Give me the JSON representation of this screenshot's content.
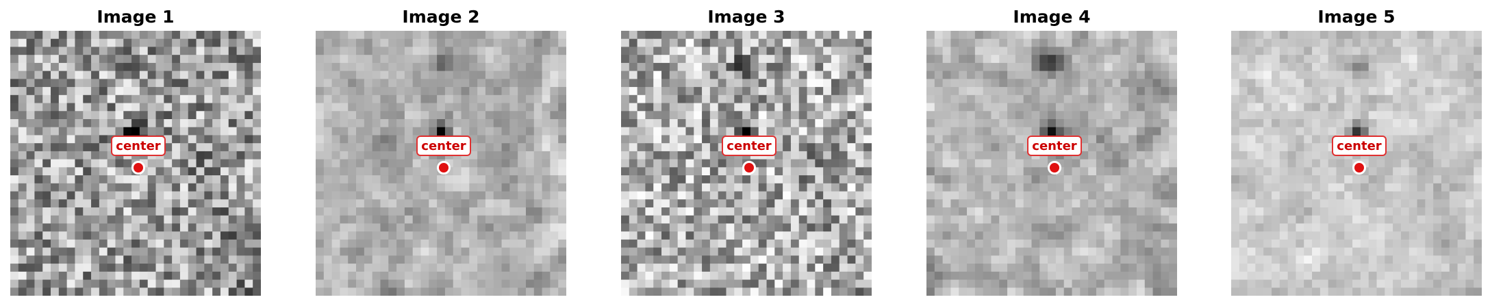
{
  "panels": [
    {
      "title": "Image 1",
      "marker_label": "center",
      "noise_seed": 11,
      "base_gray": 0.62,
      "noise_amp": 0.33,
      "blur": 0
    },
    {
      "title": "Image 2",
      "marker_label": "center",
      "noise_seed": 23,
      "base_gray": 0.7,
      "noise_amp": 0.3,
      "blur": 1
    },
    {
      "title": "Image 3",
      "marker_label": "center",
      "noise_seed": 37,
      "base_gray": 0.68,
      "noise_amp": 0.32,
      "blur": 0
    },
    {
      "title": "Image 4",
      "marker_label": "center",
      "noise_seed": 41,
      "base_gray": 0.7,
      "noise_amp": 0.28,
      "blur": 1
    },
    {
      "title": "Image 5",
      "marker_label": "center",
      "noise_seed": 53,
      "base_gray": 0.8,
      "noise_amp": 0.2,
      "blur": 1
    }
  ],
  "colors": {
    "marker_fill": "#e01010",
    "marker_stroke": "#ffffff",
    "label_text": "#cc0000",
    "label_border": "#e03030",
    "label_bg": "#ffffff"
  }
}
